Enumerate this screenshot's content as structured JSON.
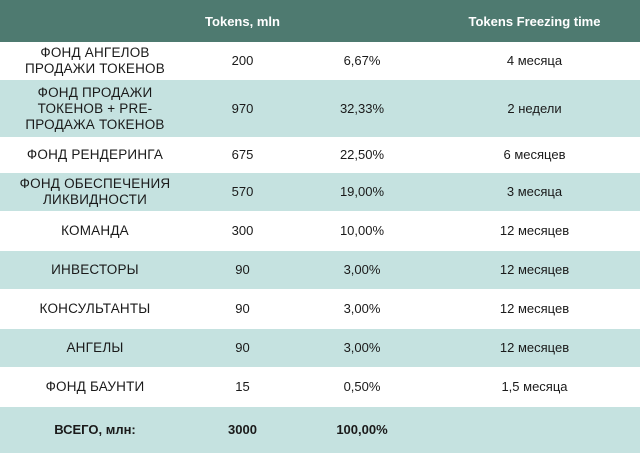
{
  "header": {
    "col0": "",
    "col1": "Tokens, mln",
    "col2": "",
    "col3": "Tokens Freezing time"
  },
  "rows": [
    {
      "name": "ФОНД АНГЕЛОВ ПРОДАЖИ ТОКЕНОВ",
      "tokens": "200",
      "percent": "6,67%",
      "freeze": "4 месяца"
    },
    {
      "name": "ФОНД ПРОДАЖИ ТОКЕНОВ + PRE-ПРОДАЖА ТОКЕНОВ",
      "tokens": "970",
      "percent": "32,33%",
      "freeze": "2 недели"
    },
    {
      "name": "ФОНД РЕНДЕРИНГА",
      "tokens": "675",
      "percent": "22,50%",
      "freeze": "6 месяцев"
    },
    {
      "name": "ФОНД ОБЕСПЕЧЕНИЯ ЛИКВИДНОСТИ",
      "tokens": "570",
      "percent": "19,00%",
      "freeze": "3 месяца"
    },
    {
      "name": "КОМАНДА",
      "tokens": "300",
      "percent": "10,00%",
      "freeze": "12 месяцев"
    },
    {
      "name": "ИНВЕСТОРЫ",
      "tokens": "90",
      "percent": "3,00%",
      "freeze": "12 месяцев"
    },
    {
      "name": "КОНСУЛЬТАНТЫ",
      "tokens": "90",
      "percent": "3,00%",
      "freeze": "12 месяцев"
    },
    {
      "name": "АНГЕЛЫ",
      "tokens": "90",
      "percent": "3,00%",
      "freeze": "12 месяцев"
    },
    {
      "name": "ФОНД БАУНТИ",
      "tokens": "15",
      "percent": "0,50%",
      "freeze": "1,5 месяца"
    }
  ],
  "total": {
    "name": "ВСЕГО, млн:",
    "tokens": "3000",
    "percent": "100,00%",
    "freeze": ""
  },
  "colors": {
    "header_bg": "#4e7a70",
    "header_text": "#ffffff",
    "row_tint": "#c5e2e0",
    "row_light": "#ffffff"
  }
}
